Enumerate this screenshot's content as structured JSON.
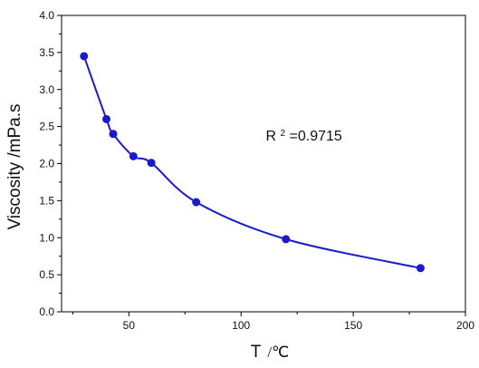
{
  "chart_data": {
    "type": "line",
    "title": "",
    "xlabel_main": "T",
    "xlabel_unit": "/℃",
    "ylabel": "Viscosity /mPa.s",
    "xlim": [
      20,
      200
    ],
    "ylim": [
      0.0,
      4.0
    ],
    "x_ticks": [
      50,
      100,
      150,
      200
    ],
    "x_tick_labels": [
      "50",
      "100",
      "150",
      "200"
    ],
    "y_ticks": [
      0.0,
      0.5,
      1.0,
      1.5,
      2.0,
      2.5,
      3.0,
      3.5,
      4.0
    ],
    "y_tick_labels": [
      "0.0",
      "0.5",
      "1.0",
      "1.5",
      "2.0",
      "2.5",
      "3.0",
      "3.5",
      "4.0"
    ],
    "series": [
      {
        "x": [
          30,
          40,
          43,
          52,
          60,
          80,
          120,
          180
        ],
        "y": [
          3.45,
          2.6,
          2.4,
          2.1,
          2.01,
          1.48,
          0.98,
          0.59
        ],
        "color": "#1a1acd"
      }
    ],
    "annotation": {
      "base": "R",
      "sup": "2",
      "rest": "=0.9715",
      "at_x": 111,
      "at_y": 2.31
    },
    "grid": false,
    "legend": "none"
  }
}
